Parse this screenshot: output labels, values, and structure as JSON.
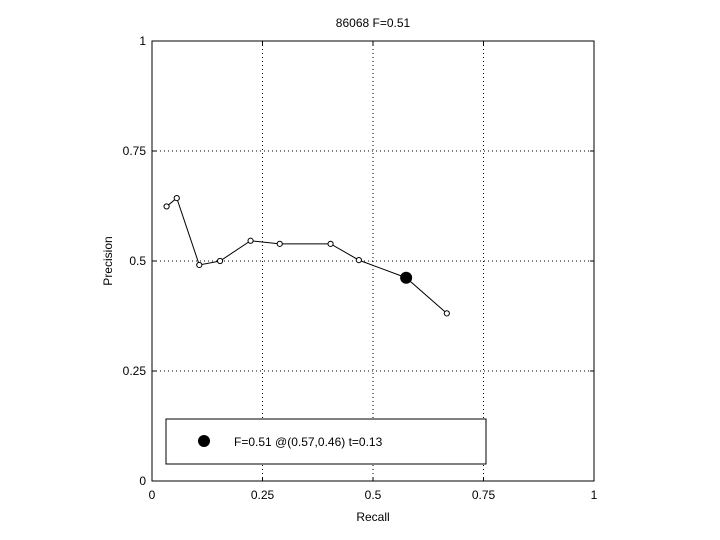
{
  "chart_data": {
    "type": "line",
    "title": "86068 F=0.51",
    "xlabel": "Recall",
    "ylabel": "Precision",
    "xlim": [
      0,
      1
    ],
    "ylim": [
      0,
      1
    ],
    "grid": true,
    "xticks": [
      0,
      0.25,
      0.5,
      0.75,
      1
    ],
    "yticks": [
      0,
      0.25,
      0.5,
      0.75,
      1
    ],
    "xtick_labels": [
      "0",
      "0.25",
      "0.5",
      "0.75",
      "1"
    ],
    "ytick_labels": [
      "0",
      "0.25",
      "0.5",
      "0.75",
      "1"
    ],
    "series": [
      {
        "x": [
          0.033,
          0.056,
          0.107,
          0.154,
          0.223,
          0.289,
          0.404,
          0.468,
          0.575,
          0.667
        ],
        "y": [
          0.624,
          0.643,
          0.491,
          0.5,
          0.546,
          0.539,
          0.539,
          0.502,
          0.462,
          0.381
        ]
      }
    ],
    "best_point": {
      "x": 0.575,
      "y": 0.462
    },
    "legend": {
      "position": "bottom-left",
      "label": "F=0.51 @(0.57,0.46) t=0.13"
    }
  }
}
